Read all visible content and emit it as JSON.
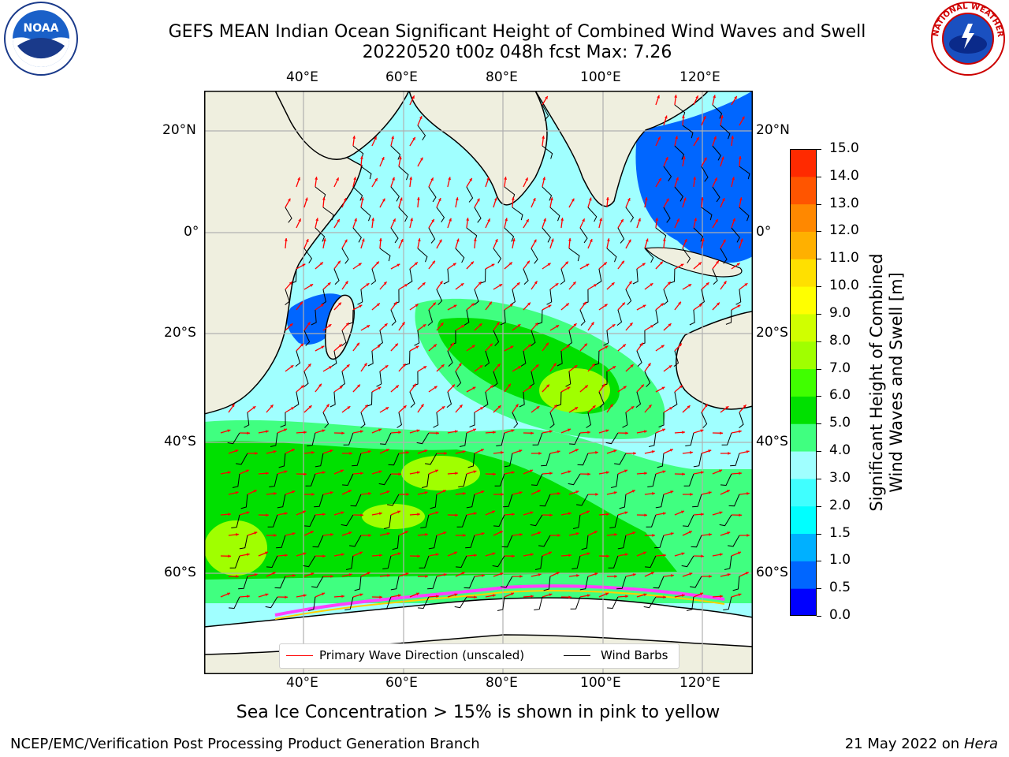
{
  "header": {
    "title_line1": "GEFS MEAN Indian Ocean Significant Height of Combined Wind Waves and Swell",
    "title_line2": "20220520 t00z 048h fcst   Max: 7.26"
  },
  "logos": {
    "left": {
      "icon": "noaa-logo",
      "text": "NOAA"
    },
    "right": {
      "icon": "nws-logo",
      "text": "NATIONAL WEATHER SERVICE"
    }
  },
  "map": {
    "top_lon_labels": [
      "40°E",
      "60°E",
      "80°E",
      "100°E",
      "120°E"
    ],
    "bottom_lon_labels": [
      "40°E",
      "60°E",
      "80°E",
      "100°E",
      "120°E"
    ],
    "left_lat_labels": [
      "20°N",
      "0°",
      "20°S",
      "40°S",
      "60°S"
    ],
    "right_lat_labels": [
      "20°N",
      "0°",
      "20°S",
      "40°S",
      "60°S"
    ],
    "land_color": "#efefdf",
    "grid_color": "#b0b0b0"
  },
  "legend": {
    "wave_label": "Primary Wave Direction (unscaled)",
    "barb_label": "Wind Barbs",
    "wave_color": "#ff0000",
    "barb_color": "#000000"
  },
  "colorbar": {
    "title_line1": "Significant Height of Combined",
    "title_line2": "Wind Waves and Swell [m]",
    "tick_labels": [
      "15.0",
      "14.0",
      "13.0",
      "12.0",
      "11.0",
      "10.0",
      "9.0",
      "8.0",
      "7.0",
      "6.0",
      "5.0",
      "4.0",
      "3.0",
      "2.0",
      "1.5",
      "1.0",
      "0.5",
      "0.0"
    ],
    "colors": [
      "#0000ff",
      "#0066ff",
      "#00b0ff",
      "#00ffff",
      "#40ffff",
      "#a0ffff",
      "#40ff80",
      "#00e000",
      "#40ff00",
      "#a0ff00",
      "#d0ff00",
      "#ffff00",
      "#ffe000",
      "#ffb000",
      "#ff8800",
      "#ff5500",
      "#ff2a00",
      "#ff0000"
    ]
  },
  "notes": {
    "sea_ice": "Sea Ice Concentration > 15% is shown in pink to yellow"
  },
  "footer": {
    "left": "NCEP/EMC/Verification Post Processing Product Generation Branch",
    "right_date": "21 May 2022 on",
    "right_machine": "Hera"
  }
}
